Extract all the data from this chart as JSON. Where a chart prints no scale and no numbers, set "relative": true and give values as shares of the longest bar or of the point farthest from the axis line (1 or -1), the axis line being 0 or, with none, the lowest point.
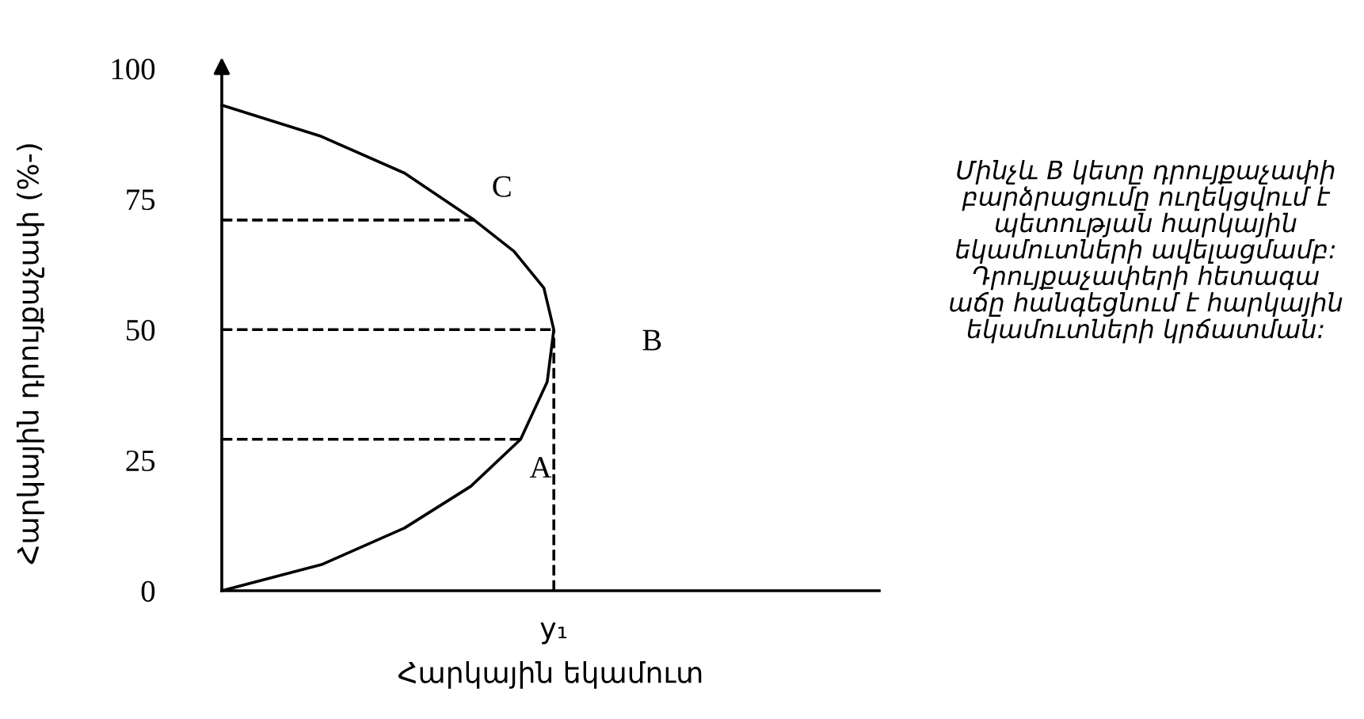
{
  "chart_data": {
    "type": "line",
    "orientation": "horizontal",
    "relative": true,
    "xlabel": "Հարկային եկամուտ",
    "ylabel": "Հարկային դրույքաչափ (%-)",
    "ylim": [
      0,
      101
    ],
    "yticks": [
      0,
      25,
      50,
      75,
      100
    ],
    "grid": false,
    "legend": false,
    "marker": "none",
    "series": [
      {
        "color": "#000000",
        "line_style": "solid",
        "x": [
          0,
          5,
          12,
          20,
          29,
          40,
          50,
          58,
          65,
          71,
          80,
          87,
          93
        ],
        "values": [
          0,
          0.3,
          0.55,
          0.75,
          0.9,
          0.98,
          1.0,
          0.97,
          0.88,
          0.76,
          0.55,
          0.3,
          0
        ]
      },
      {
        "color": "#000000",
        "line_style": "dashed",
        "x": [
          29,
          29
        ],
        "values": [
          0,
          0.9
        ]
      },
      {
        "color": "#000000",
        "line_style": "dashed",
        "x": [
          50,
          50
        ],
        "values": [
          0,
          1.0
        ]
      },
      {
        "color": "#000000",
        "line_style": "dashed",
        "x": [
          71,
          71
        ],
        "values": [
          0,
          0.76
        ]
      },
      {
        "color": "#000000",
        "line_style": "dashed",
        "x": [
          0,
          50
        ],
        "values": [
          1.0,
          1.0
        ]
      }
    ],
    "annotations": [
      {
        "text": "A",
        "x": 0.9,
        "y": 29
      },
      {
        "text": "B",
        "x": 1.0,
        "y": 50
      },
      {
        "text": "C",
        "x": 0.76,
        "y": 71
      },
      {
        "text": "y₁",
        "x": 1.0,
        "y": 0
      },
      "Մինչև B կետը դրույքաչափի\nբարձրացումը ուղեկցվում է\nպետության հարկային\nեկամուտների ավելացմամբ:\nԴրույքաչափերի հետագա\nաճը հանգեցնում է հարկային\nեկամուտների կրճատման:"
    ]
  }
}
